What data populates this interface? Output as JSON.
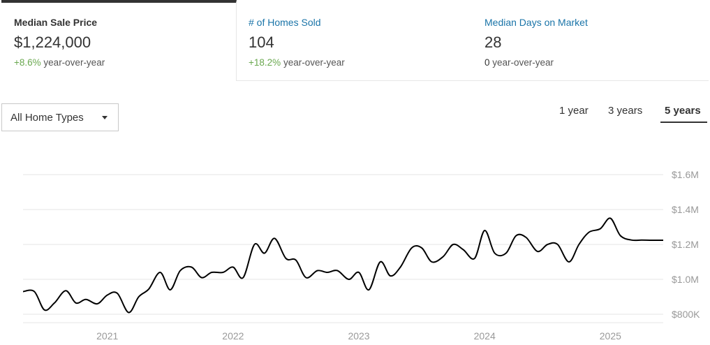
{
  "tabs": [
    {
      "title": "Median Sale Price",
      "value": "$1,224,000",
      "change": "+8.6%",
      "change_suffix": "year-over-year",
      "active": true
    },
    {
      "title": "# of Homes Sold",
      "value": "104",
      "change": "+18.2%",
      "change_suffix": "year-over-year",
      "active": false
    },
    {
      "title": "Median Days on Market",
      "value": "28",
      "change": "0",
      "change_suffix": "year-over-year",
      "active": false
    }
  ],
  "filter": {
    "selected": "All Home Types"
  },
  "ranges": [
    {
      "label": "1 year",
      "active": false
    },
    {
      "label": "3 years",
      "active": false
    },
    {
      "label": "5 years",
      "active": true
    }
  ],
  "colors": {
    "line": "#000000",
    "grid": "#e6e6e6",
    "positive": "#6aa84f",
    "link": "#1a74a8"
  },
  "chart_data": {
    "type": "line",
    "title": "",
    "xlabel": "",
    "ylabel": "",
    "grid": true,
    "ylim": [
      700000,
      1700000
    ],
    "xlim": [
      2020.33,
      2025.42
    ],
    "y_ticks": [
      {
        "value": 1600000,
        "label": "$1.6M"
      },
      {
        "value": 1400000,
        "label": "$1.4M"
      },
      {
        "value": 1200000,
        "label": "$1.2M"
      },
      {
        "value": 1000000,
        "label": "$1.0M"
      },
      {
        "value": 800000,
        "label": "$800K"
      }
    ],
    "x_ticks": [
      {
        "value": 2021.0,
        "label": "2021"
      },
      {
        "value": 2022.0,
        "label": "2022"
      },
      {
        "value": 2023.0,
        "label": "2023"
      },
      {
        "value": 2024.0,
        "label": "2024"
      },
      {
        "value": 2025.0,
        "label": "2025"
      }
    ],
    "series": [
      {
        "x": [
          2020.33,
          2020.42,
          2020.5,
          2020.58,
          2020.67,
          2020.75,
          2020.83,
          2020.92,
          2021.0,
          2021.08,
          2021.17,
          2021.25,
          2021.33,
          2021.42,
          2021.5,
          2021.58,
          2021.67,
          2021.75,
          2021.83,
          2021.92,
          2022.0,
          2022.08,
          2022.17,
          2022.25,
          2022.33,
          2022.42,
          2022.5,
          2022.58,
          2022.67,
          2022.75,
          2022.83,
          2022.92,
          2023.0,
          2023.08,
          2023.17,
          2023.25,
          2023.33,
          2023.42,
          2023.5,
          2023.58,
          2023.67,
          2023.75,
          2023.83,
          2023.92,
          2024.0,
          2024.08,
          2024.17,
          2024.25,
          2024.33,
          2024.42,
          2024.5,
          2024.58,
          2024.67,
          2024.75,
          2024.83,
          2024.92,
          2025.0,
          2025.08,
          2025.17,
          2025.25,
          2025.33,
          2025.42
        ],
        "values": [
          930000,
          930000,
          825000,
          865000,
          935000,
          865000,
          885000,
          860000,
          910000,
          920000,
          810000,
          900000,
          945000,
          1040000,
          940000,
          1050000,
          1070000,
          1010000,
          1040000,
          1040000,
          1070000,
          1010000,
          1200000,
          1150000,
          1235000,
          1120000,
          1110000,
          1010000,
          1050000,
          1040000,
          1050000,
          1000000,
          1040000,
          940000,
          1100000,
          1020000,
          1070000,
          1180000,
          1180000,
          1100000,
          1130000,
          1200000,
          1170000,
          1120000,
          1280000,
          1150000,
          1150000,
          1250000,
          1240000,
          1160000,
          1200000,
          1200000,
          1100000,
          1200000,
          1270000,
          1290000,
          1350000,
          1250000,
          1225000,
          1225000,
          1224000,
          1224000
        ]
      }
    ]
  }
}
